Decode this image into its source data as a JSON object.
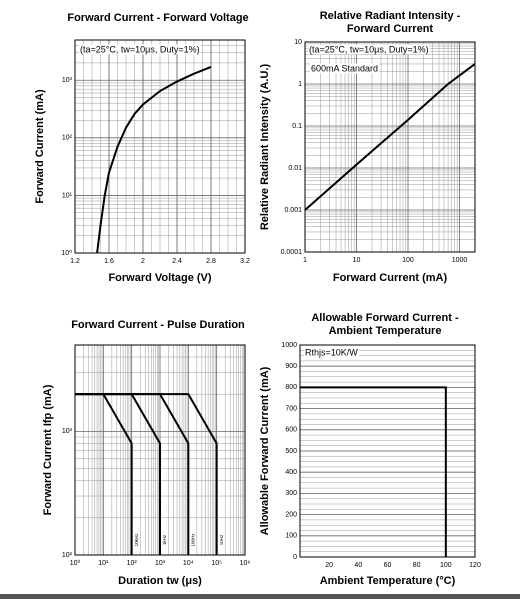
{
  "chart_data": [
    {
      "type": "line",
      "title": [
        "Forward Current - Forward Voltage"
      ],
      "x_label": "Forward Voltage (V)",
      "y_label": "Forward Current (mA)",
      "xscale": "linear",
      "yscale": "log",
      "grid": "both",
      "xlim": [
        1.2,
        3.2
      ],
      "xticks": [
        1.2,
        1.6,
        2.0,
        2.4,
        2.8,
        3.2
      ],
      "ylim": [
        1,
        5000
      ],
      "yticks": [
        {
          "value": 1,
          "label": "10⁰"
        },
        {
          "value": 10,
          "label": "10¹"
        },
        {
          "value": 100,
          "label": "10²"
        },
        {
          "value": 1000,
          "label": "10³"
        }
      ],
      "annotations": [
        "(ta=25°C, tw=10μs, Duty=1%)"
      ],
      "series": [
        {
          "color": "#000000",
          "x": [
            1.46,
            1.5,
            1.55,
            1.6,
            1.7,
            1.8,
            1.9,
            2.0,
            2.2,
            2.4,
            2.6,
            2.8
          ],
          "values": [
            1,
            3,
            10,
            25,
            70,
            150,
            260,
            380,
            650,
            950,
            1300,
            1700
          ]
        }
      ]
    },
    {
      "type": "line",
      "title": [
        "Relative Radiant Intensity -",
        "Forward Current"
      ],
      "x_label": "Forward Current (mA)",
      "y_label": "Relative Radiant Intensity (A.U.)",
      "xscale": "log",
      "yscale": "log",
      "grid": "both",
      "xlim": [
        1,
        2000
      ],
      "xticks": [
        1,
        10,
        100,
        1000
      ],
      "ylim": [
        0.0001,
        10
      ],
      "yticks": [
        0.0001,
        0.001,
        0.01,
        0.1,
        1,
        10
      ],
      "annotations": [
        "(ta=25°C, tw=10μs, Duty=1%)",
        "600mA Standard"
      ],
      "series": [
        {
          "color": "#000000",
          "x": [
            1,
            10,
            100,
            600,
            2000
          ],
          "values": [
            0.001,
            0.012,
            0.14,
            1,
            3
          ]
        }
      ]
    },
    {
      "type": "line",
      "title": [
        "Forward Current - Pulse Duration"
      ],
      "x_label": "Duration tw (μs)",
      "y_label": "Forward Current Ifp (mA)",
      "xscale": "log",
      "yscale": "log",
      "grid": "both",
      "xlim": [
        1,
        1000000
      ],
      "xticks": [
        {
          "value": 1,
          "label": "10⁰"
        },
        {
          "value": 10,
          "label": "10¹"
        },
        {
          "value": 100,
          "label": "10²"
        },
        {
          "value": 1000,
          "label": "10³"
        },
        {
          "value": 10000,
          "label": "10⁴"
        },
        {
          "value": 100000,
          "label": "10⁵"
        },
        {
          "value": 1000000,
          "label": "10⁶"
        }
      ],
      "ylim": [
        100,
        5000
      ],
      "yticks": [
        {
          "value": 100,
          "label": "10²"
        },
        {
          "value": 1000,
          "label": "10³"
        }
      ],
      "annotations": [],
      "series": [
        {
          "name": "10kHz",
          "color": "#000000",
          "x": [
            1,
            10,
            100,
            100
          ],
          "values": [
            2000,
            2000,
            800,
            100
          ]
        },
        {
          "name": "1kHz",
          "color": "#000000",
          "x": [
            1,
            100,
            1000,
            1000
          ],
          "values": [
            2000,
            2000,
            800,
            100
          ]
        },
        {
          "name": "100Hz",
          "color": "#000000",
          "x": [
            1,
            1000,
            10000,
            10000
          ],
          "values": [
            2000,
            2000,
            800,
            100
          ]
        },
        {
          "name": "10Hz",
          "color": "#000000",
          "x": [
            1,
            10000,
            100000,
            100000
          ],
          "values": [
            2000,
            2000,
            800,
            100
          ]
        }
      ]
    },
    {
      "type": "line",
      "title": [
        "Allowable Forward Current -",
        "Ambient Temperature"
      ],
      "x_label": "Ambient Temperature (°C)",
      "y_label": "Allowable Forward Current (mA)",
      "xscale": "linear",
      "yscale": "linear",
      "grid": "y",
      "xlim": [
        0,
        120
      ],
      "xticks": [
        20,
        40,
        60,
        80,
        100,
        120
      ],
      "ylim": [
        0,
        1000
      ],
      "yticks": [
        0,
        100,
        200,
        300,
        400,
        500,
        600,
        700,
        800,
        900,
        1000
      ],
      "annotations": [
        "Rthjs=10K/W"
      ],
      "series": [
        {
          "color": "#000000",
          "x": [
            0,
            100,
            100
          ],
          "values": [
            800,
            800,
            0
          ]
        }
      ]
    }
  ]
}
